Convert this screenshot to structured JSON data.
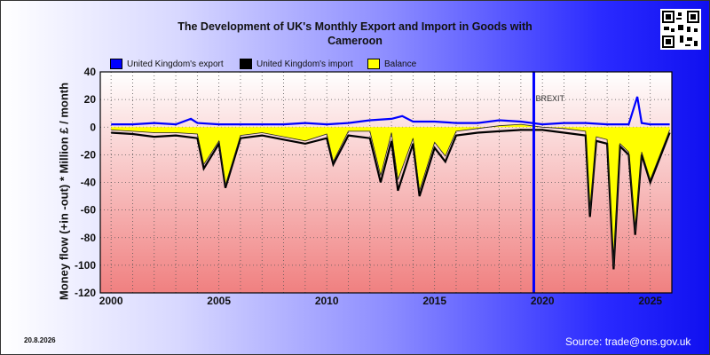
{
  "title_line1": "The Development of UK's Monthly Export and Import in Goods with",
  "title_line2": "Cameroon",
  "date_stamp": "20.8.2026",
  "source": "Source: trade@ons.gov.uk",
  "chart_data": {
    "type": "line",
    "title": "The Development of UK's Monthly Export and Import in Goods with Cameroon",
    "ylabel": "Money flow (+in -out) * Million £ / month",
    "xlabel": "",
    "ylim": [
      -120,
      40
    ],
    "xlim": [
      1999.5,
      2026
    ],
    "yticks": [
      40,
      20,
      0,
      -20,
      -40,
      -60,
      -80,
      -100,
      -120
    ],
    "xticks": [
      2000,
      2005,
      2010,
      2015,
      2020,
      2025
    ],
    "grid": true,
    "legend_position": "top",
    "annotation": {
      "label": "BREXIT",
      "x": 2019.6
    },
    "colors": {
      "export": "#0000ff",
      "import": "#000000",
      "balance": "#ffff00",
      "brexit": "#0000ff"
    },
    "series": [
      {
        "name": "United Kingdom's export",
        "x": [
          2000,
          2001,
          2002,
          2003,
          2003.7,
          2004,
          2005,
          2006,
          2007,
          2008,
          2009,
          2010,
          2011,
          2012,
          2013,
          2013.5,
          2014,
          2015,
          2016,
          2017,
          2018,
          2019,
          2020,
          2021,
          2022,
          2023,
          2024,
          2024.4,
          2024.6,
          2025,
          2025.9
        ],
        "y": [
          2,
          2,
          3,
          2,
          6,
          3,
          2,
          2,
          2,
          2,
          3,
          2,
          3,
          5,
          6,
          8,
          4,
          4,
          3,
          3,
          5,
          4,
          2,
          3,
          3,
          2,
          2,
          22,
          3,
          2,
          2
        ]
      },
      {
        "name": "United Kingdom's import",
        "x": [
          2000,
          2001,
          2002,
          2003,
          2004,
          2004.3,
          2005,
          2005.3,
          2006,
          2007,
          2008,
          2009,
          2010,
          2010.3,
          2011,
          2012,
          2012.5,
          2013,
          2013.3,
          2014,
          2014.3,
          2015,
          2015.5,
          2016,
          2017,
          2018,
          2019,
          2020,
          2021,
          2022,
          2022.2,
          2022.5,
          2023,
          2023.3,
          2023.6,
          2024,
          2024.3,
          2024.6,
          2025,
          2025.9
        ],
        "y": [
          -4,
          -5,
          -7,
          -6,
          -8,
          -30,
          -12,
          -44,
          -8,
          -6,
          -9,
          -12,
          -8,
          -27,
          -6,
          -8,
          -40,
          -10,
          -46,
          -12,
          -50,
          -15,
          -25,
          -6,
          -4,
          -3,
          -2,
          -2,
          -4,
          -6,
          -65,
          -10,
          -12,
          -103,
          -14,
          -20,
          -78,
          -20,
          -40,
          -4
        ]
      },
      {
        "name": "Balance",
        "x": [
          2000,
          2001,
          2002,
          2003,
          2004,
          2004.3,
          2005,
          2005.3,
          2006,
          2007,
          2008,
          2009,
          2010,
          2010.3,
          2011,
          2012,
          2012.5,
          2013,
          2013.3,
          2014,
          2014.3,
          2015,
          2015.5,
          2016,
          2017,
          2018,
          2019,
          2020,
          2021,
          2022,
          2022.2,
          2022.5,
          2023,
          2023.3,
          2023.6,
          2024,
          2024.3,
          2024.6,
          2025,
          2025.9
        ],
        "y": [
          -2,
          -3,
          -4,
          -4,
          -5,
          -27,
          -10,
          -42,
          -6,
          -4,
          -7,
          -10,
          -5,
          -25,
          -3,
          -3,
          -35,
          -4,
          -38,
          -8,
          -46,
          -11,
          -21,
          -3,
          -1,
          1,
          2,
          0,
          -1,
          -3,
          -62,
          -7,
          -9,
          -101,
          -12,
          -18,
          -76,
          -18,
          -38,
          -2
        ]
      }
    ]
  }
}
